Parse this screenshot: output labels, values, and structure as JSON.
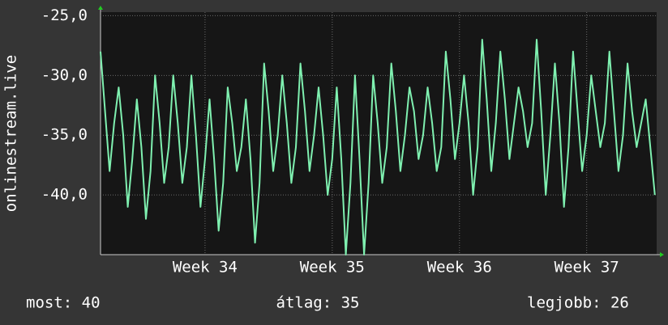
{
  "chart_data": {
    "type": "line",
    "ylabel": "onlinestream.live",
    "color": "#7ff0b0",
    "x": [
      0,
      0.25,
      0.5,
      0.75,
      1,
      1.25,
      1.5,
      1.75,
      2,
      2.25,
      2.5,
      2.75,
      3,
      3.25,
      3.5,
      3.75,
      4,
      4.25,
      4.5,
      4.75,
      5,
      5.25,
      5.5,
      5.75,
      6,
      6.25,
      6.5,
      6.75,
      7,
      7.25,
      7.5,
      7.75,
      8,
      8.25,
      8.5,
      8.75,
      9,
      9.25,
      9.5,
      9.75,
      10,
      10.25,
      10.5,
      10.75,
      11,
      11.25,
      11.5,
      11.75,
      12,
      12.25,
      12.5,
      12.75,
      13,
      13.25,
      13.5,
      13.75,
      14,
      14.25,
      14.5,
      14.75,
      15,
      15.25,
      15.5,
      15.75,
      16,
      16.25,
      16.5,
      16.75,
      17,
      17.25,
      17.5,
      17.75,
      18,
      18.25,
      18.5,
      18.75,
      19,
      19.25,
      19.5,
      19.75,
      20,
      20.25,
      20.5,
      20.75,
      21,
      21.25,
      21.5,
      21.75,
      22,
      22.25,
      22.5,
      22.75,
      23,
      23.25,
      23.5,
      23.75,
      24,
      24.25,
      24.5,
      24.75,
      25,
      25.25,
      25.5,
      25.75,
      26,
      26.25,
      26.5,
      26.75,
      27,
      27.25,
      27.5,
      27.75,
      28,
      28.25,
      28.5,
      28.75,
      29,
      29.25,
      29.5,
      29.75,
      30,
      30.25,
      30.5
    ],
    "values": [
      -28,
      -33,
      -38,
      -34,
      -31,
      -35,
      -41,
      -37,
      -32,
      -36,
      -42,
      -38,
      -30,
      -34,
      -39,
      -36,
      -30,
      -34,
      -39,
      -36,
      -30,
      -35,
      -41,
      -37,
      -32,
      -37,
      -43,
      -39,
      -31,
      -34,
      -38,
      -36,
      -32,
      -37,
      -44,
      -39,
      -29,
      -33,
      -38,
      -35,
      -30,
      -34,
      -39,
      -36,
      -29,
      -33,
      -38,
      -35,
      -31,
      -35,
      -40,
      -37,
      -31,
      -37,
      -45,
      -39,
      -30,
      -37,
      -45,
      -39,
      -30,
      -34,
      -39,
      -36,
      -29,
      -33,
      -38,
      -35,
      -31,
      -33,
      -37,
      -35,
      -31,
      -34,
      -38,
      -36,
      -28,
      -32,
      -37,
      -34,
      -30,
      -34,
      -40,
      -36,
      -27,
      -32,
      -38,
      -34,
      -28,
      -32,
      -37,
      -34,
      -31,
      -33,
      -36,
      -34,
      -27,
      -33,
      -40,
      -35,
      -29,
      -34,
      -41,
      -36,
      -28,
      -33,
      -38,
      -35,
      -30,
      -33,
      -36,
      -34,
      -28,
      -33,
      -38,
      -35,
      -29,
      -33,
      -36,
      -34,
      -32,
      -36,
      -40
    ],
    "xlim": [
      0,
      30.6
    ],
    "ylim": [
      -45,
      -24.7
    ],
    "xticks": [
      {
        "value": 5.75,
        "label": "Week 34"
      },
      {
        "value": 12.75,
        "label": "Week 35"
      },
      {
        "value": 19.75,
        "label": "Week 36"
      },
      {
        "value": 26.75,
        "label": "Week 37"
      }
    ],
    "yticks": [
      {
        "value": -25,
        "label": "-25,0"
      },
      {
        "value": -30,
        "label": "-30,0"
      },
      {
        "value": -35,
        "label": "-35,0"
      },
      {
        "value": -40,
        "label": "-40,0"
      }
    ],
    "grid": true,
    "stats": [
      "most: 40",
      "átlag: 35",
      "legjobb: 26"
    ]
  }
}
